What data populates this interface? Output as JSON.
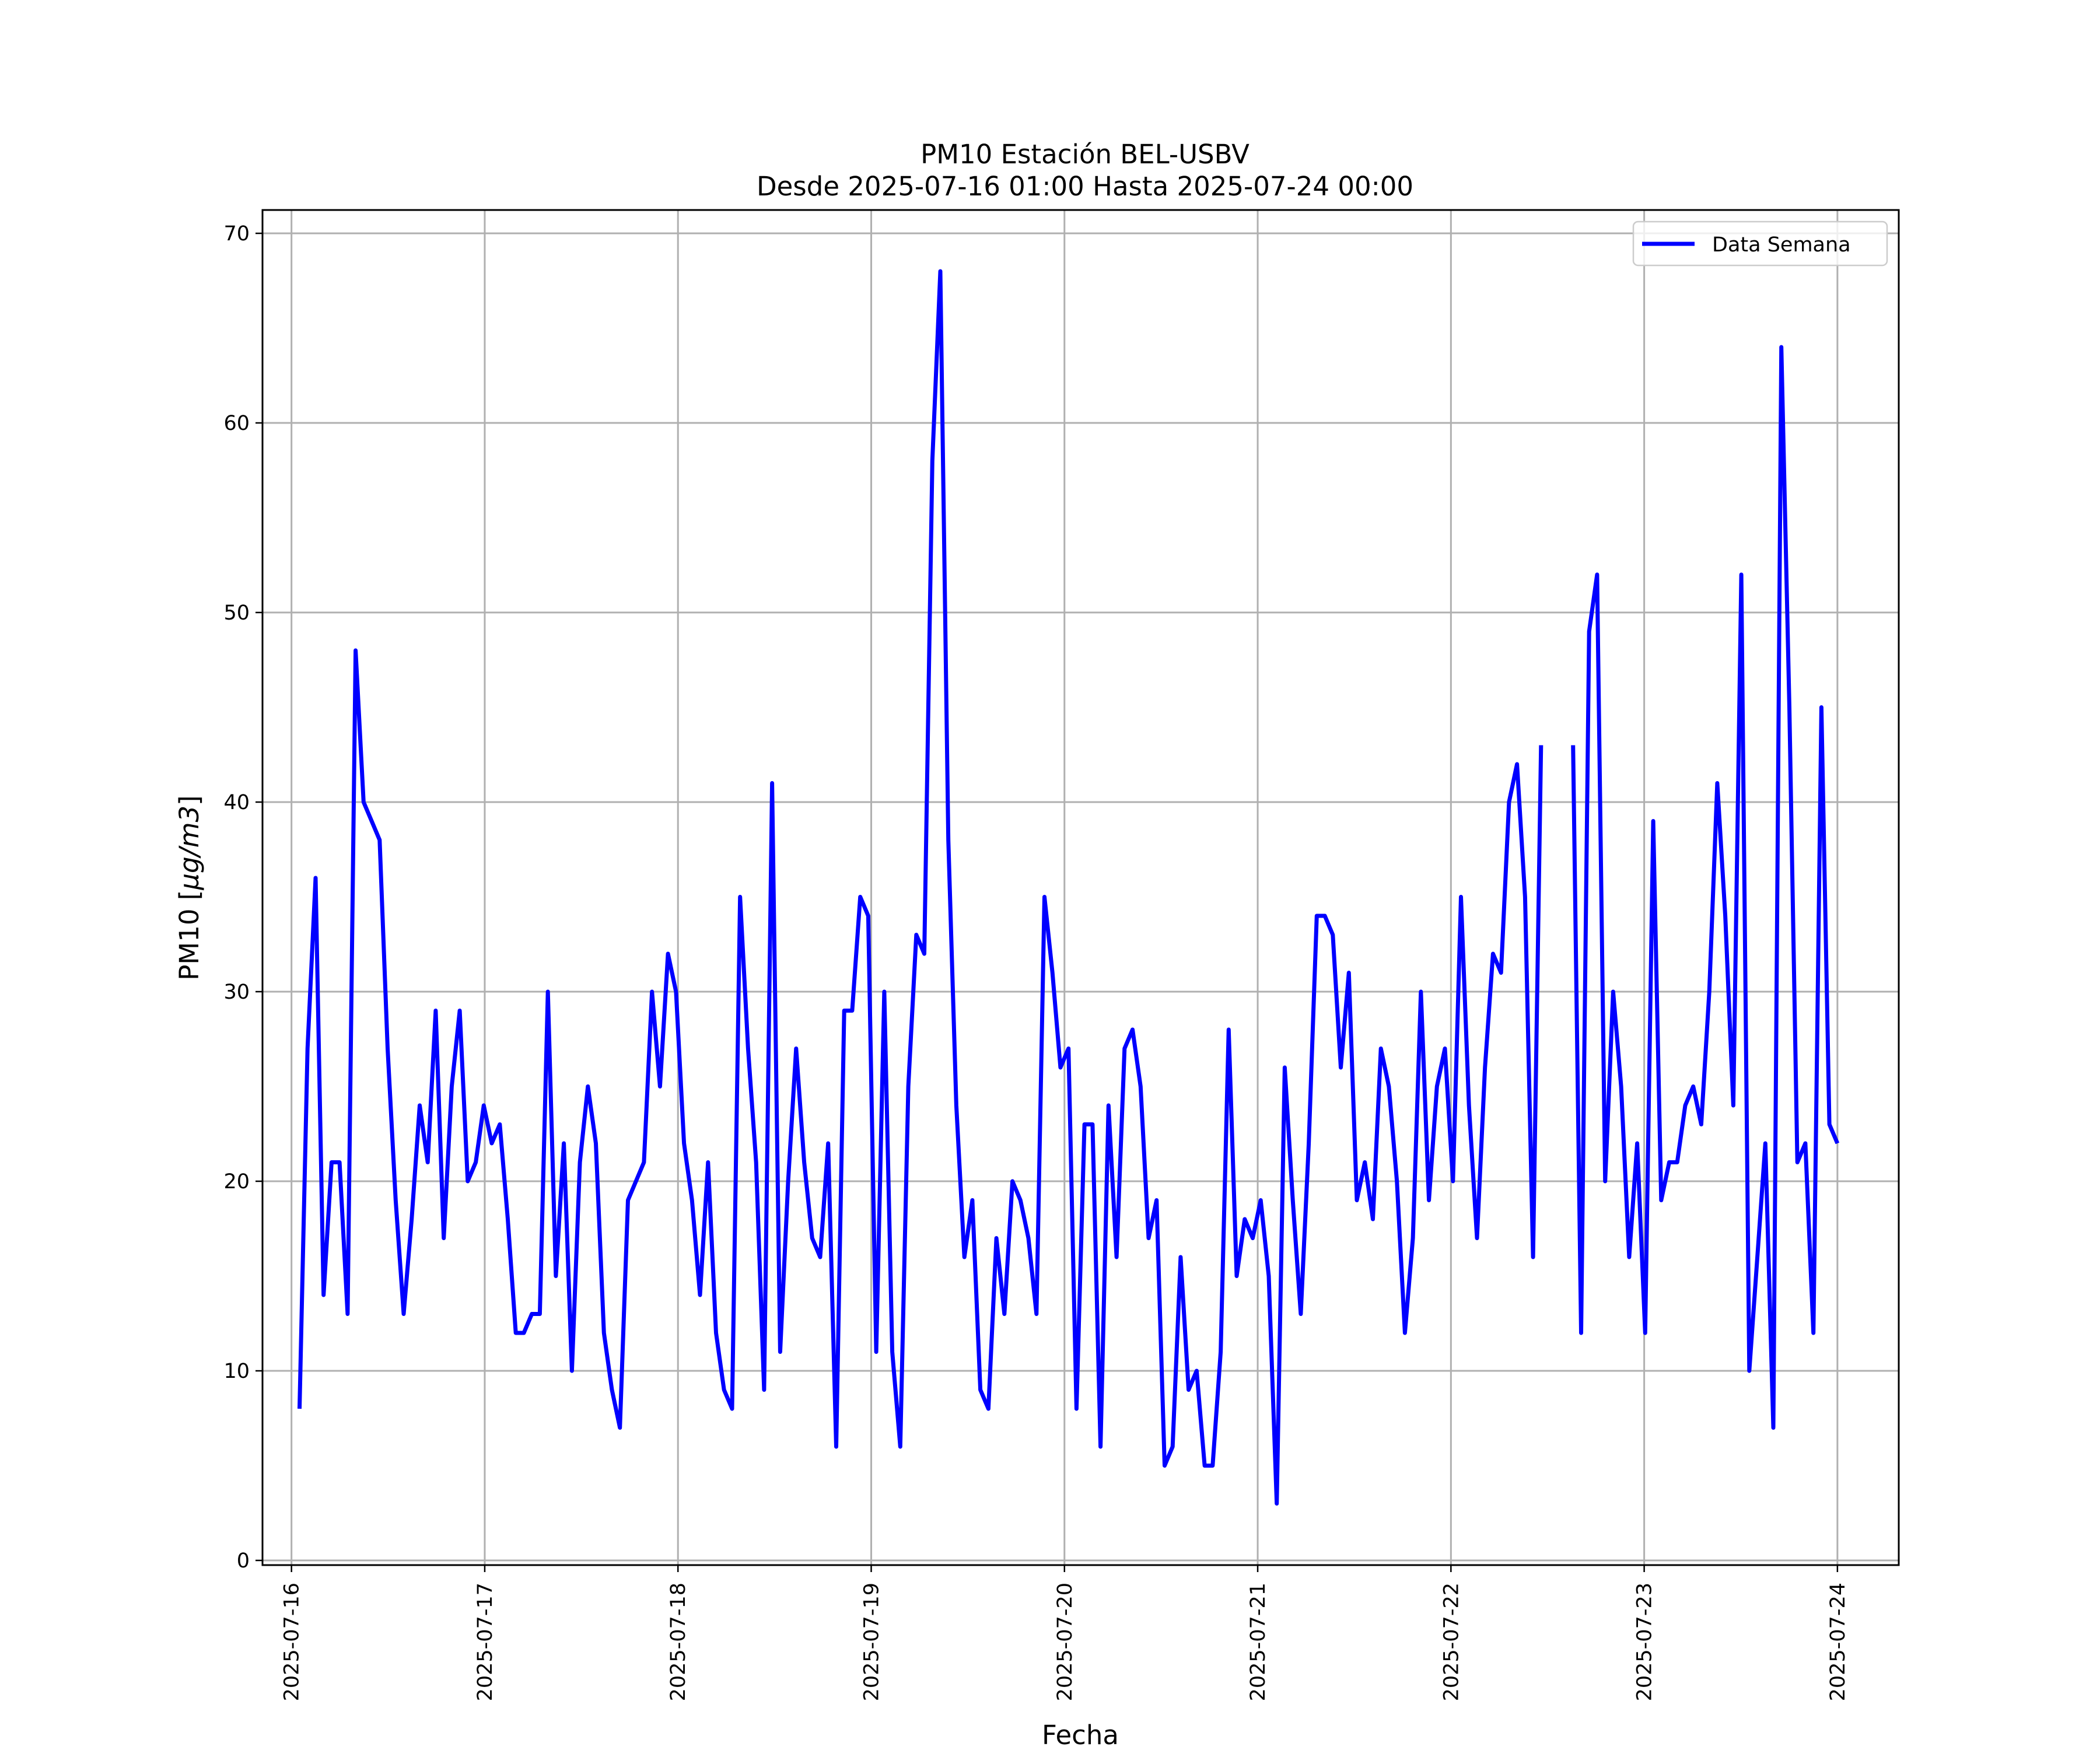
{
  "chart_data": {
    "type": "line",
    "title_line1": "PM10 Estación BEL-USBV",
    "title_line2": "Desde 2025-07-16 01:00 Hasta 2025-07-24 00:00",
    "xlabel": "Fecha",
    "ylabel_prefix": "PM10 [",
    "ylabel_unit": "μg/m3",
    "ylabel_suffix": "]",
    "ylim": [
      0,
      70
    ],
    "y_ticks": [
      0,
      10,
      20,
      30,
      40,
      50,
      60,
      70
    ],
    "x_ticks": [
      "2025-07-16",
      "2025-07-17",
      "2025-07-18",
      "2025-07-19",
      "2025-07-20",
      "2025-07-21",
      "2025-07-22",
      "2025-07-23",
      "2025-07-24"
    ],
    "x_range": [
      "2025-07-15 20:24",
      "2025-07-24 07:37"
    ],
    "grid": true,
    "legend_position": "top-right",
    "series": [
      {
        "name": "Data Semana",
        "color": "#0000ff",
        "values": [
          8,
          27,
          36,
          14,
          21,
          21,
          13,
          48,
          40,
          39,
          38,
          27,
          19,
          13,
          18,
          24,
          21,
          29,
          17,
          25,
          29,
          20,
          21,
          24,
          22,
          23,
          18,
          12,
          12,
          13,
          13,
          30,
          15,
          22,
          10,
          21,
          25,
          22,
          12,
          9,
          7,
          19,
          20,
          21,
          30,
          25,
          32,
          30,
          22,
          19,
          14,
          21,
          12,
          9,
          8,
          35,
          27,
          21,
          9,
          41,
          11,
          20,
          27,
          21,
          17,
          16,
          22,
          6,
          29,
          29,
          35,
          34,
          11,
          30,
          11,
          6,
          25,
          33,
          32,
          58,
          68,
          38,
          24,
          16,
          19,
          9,
          8,
          17,
          13,
          20,
          19,
          17,
          13,
          35,
          31,
          26,
          27,
          8,
          23,
          23,
          6,
          24,
          16,
          27,
          28,
          25,
          17,
          19,
          5,
          6,
          16,
          9,
          10,
          5,
          5,
          11,
          28,
          15,
          18,
          17,
          19,
          15,
          3,
          26,
          19,
          13,
          22,
          34,
          34,
          33,
          26,
          31,
          19,
          21,
          18,
          27,
          25,
          20,
          12,
          17,
          30,
          19,
          25,
          27,
          20,
          35,
          24,
          17,
          26,
          32,
          31,
          40,
          42,
          35,
          16,
          43,
          null,
          null,
          null,
          43,
          12,
          49,
          52,
          20,
          30,
          25,
          16,
          22,
          12,
          39,
          19,
          21,
          21,
          24,
          25,
          23,
          30,
          41,
          34,
          24,
          52,
          10,
          16,
          22,
          7,
          64,
          45,
          21,
          22,
          12,
          45,
          23,
          22
        ]
      }
    ]
  }
}
